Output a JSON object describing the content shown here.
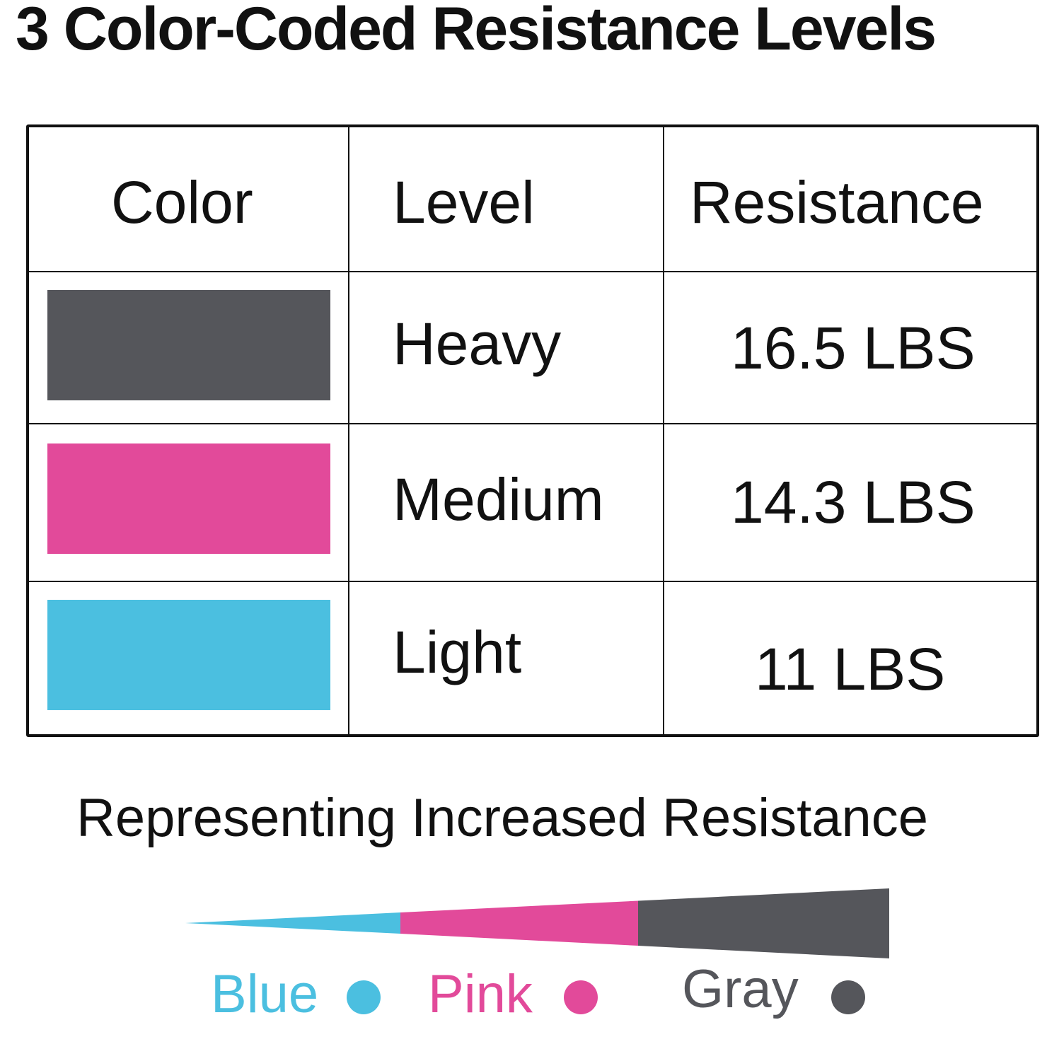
{
  "title": "3 Color-Coded Resistance Levels",
  "table": {
    "headers": [
      "Color",
      "Level",
      "Resistance"
    ],
    "rows": [
      {
        "color": "#55565b",
        "level": "Heavy",
        "resistance": "16.5 LBS"
      },
      {
        "color": "#e24a9a",
        "level": "Medium",
        "resistance": "14.3 LBS"
      },
      {
        "color": "#4bbfe0",
        "level": "Light",
        "resistance": "11 LBS"
      }
    ]
  },
  "subtitle": "Representing Increased Resistance",
  "legend": [
    {
      "label": "Blue",
      "color": "#4bbfe0"
    },
    {
      "label": "Pink",
      "color": "#e24a9a"
    },
    {
      "label": "Gray",
      "color": "#55565b"
    }
  ]
}
